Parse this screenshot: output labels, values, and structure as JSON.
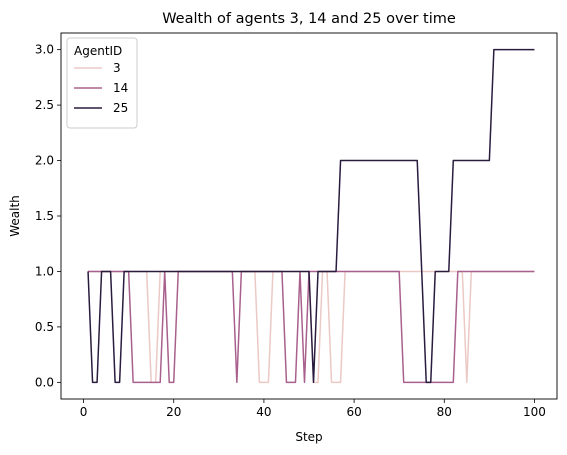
{
  "chart_data": {
    "type": "line",
    "title": "Wealth of agents 3, 14 and 25 over time",
    "xlabel": "Step",
    "ylabel": "Wealth",
    "xlim": [
      -5,
      105
    ],
    "ylim": [
      -0.15,
      3.15
    ],
    "xticks": [
      0,
      20,
      40,
      60,
      80,
      100
    ],
    "yticks": [
      0.0,
      0.5,
      1.0,
      1.5,
      2.0,
      2.5,
      3.0
    ],
    "xtick_labels": [
      "0",
      "20",
      "40",
      "60",
      "80",
      "100"
    ],
    "ytick_labels": [
      "0.0",
      "0.5",
      "1.0",
      "1.5",
      "2.0",
      "2.5",
      "3.0"
    ],
    "grid": false,
    "legend": {
      "title": "AgentID",
      "position": "top-left"
    },
    "series": [
      {
        "name": "3",
        "color": "#ebc9c5",
        "x": [
          1,
          14,
          15,
          16,
          17,
          18,
          19,
          38,
          39,
          40,
          41,
          42,
          43,
          50,
          51,
          52,
          53,
          54,
          55,
          56,
          57,
          58,
          72,
          73,
          74,
          83,
          84,
          85,
          86,
          100
        ],
        "y": [
          1,
          1,
          0,
          0,
          1,
          1,
          1,
          1,
          0,
          0,
          0,
          1,
          1,
          1,
          0,
          0,
          1,
          1,
          0,
          0,
          0,
          1,
          1,
          1,
          1,
          1,
          1,
          0,
          1,
          1
        ]
      },
      {
        "name": "14",
        "color": "#a8608c",
        "x": [
          1,
          9,
          10,
          11,
          12,
          13,
          14,
          15,
          16,
          17,
          18,
          19,
          20,
          21,
          33,
          34,
          35,
          44,
          45,
          46,
          47,
          48,
          49,
          50,
          70,
          71,
          72,
          73,
          74,
          75,
          76,
          77,
          78,
          79,
          80,
          81,
          82,
          83,
          100
        ],
        "y": [
          1,
          1,
          1,
          0,
          0,
          0,
          0,
          0,
          0,
          0,
          1,
          0,
          0,
          1,
          1,
          0,
          1,
          1,
          0,
          0,
          0,
          1,
          0,
          1,
          1,
          0,
          0,
          0,
          0,
          0,
          0,
          0,
          0,
          0,
          0,
          0,
          0,
          1,
          1
        ]
      },
      {
        "name": "25",
        "color": "#2a1c3e",
        "x": [
          1,
          2,
          3,
          4,
          5,
          6,
          7,
          8,
          9,
          10,
          49,
          50,
          51,
          52,
          53,
          54,
          55,
          56,
          57,
          58,
          74,
          75,
          76,
          77,
          78,
          79,
          80,
          81,
          82,
          83,
          84,
          89,
          90,
          91,
          92,
          100
        ],
        "y": [
          1,
          0,
          0,
          1,
          1,
          1,
          0,
          0,
          1,
          1,
          1,
          1,
          0,
          1,
          1,
          1,
          1,
          1,
          2,
          2,
          2,
          1,
          0,
          0,
          1,
          1,
          1,
          1,
          2,
          2,
          2,
          2,
          2,
          3,
          3,
          3
        ]
      }
    ]
  }
}
